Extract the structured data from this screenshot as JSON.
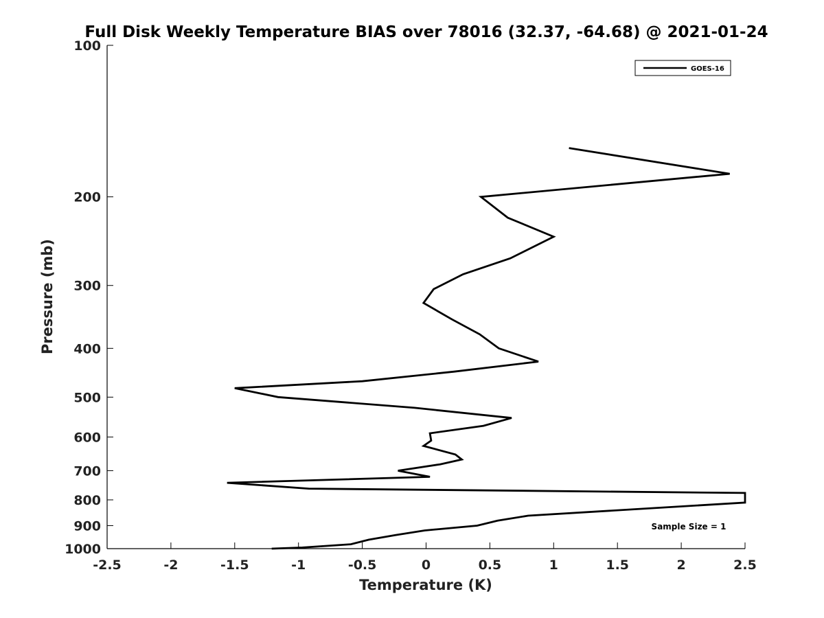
{
  "chart_data": {
    "type": "line",
    "title": "Full Disk Weekly Temperature BIAS over 78016 (32.37, -64.68) @ 2021-01-24",
    "xlabel": "Temperature (K)",
    "ylabel": "Pressure (mb)",
    "xlim": [
      -2.5,
      2.5
    ],
    "ylim": [
      100,
      1000
    ],
    "y_scale": "log",
    "y_reversed": true,
    "grid": false,
    "legend_position": "top-right",
    "x_tick_labels": [
      "-2.5",
      "-2",
      "-1.5",
      "-1",
      "-0.5",
      "0",
      "0.5",
      "1",
      "1.5",
      "2",
      "2.5"
    ],
    "y_tick_labels": [
      "100",
      "200",
      "300",
      "400",
      "500",
      "600",
      "700",
      "800",
      "900",
      "1000"
    ],
    "series": [
      {
        "name": "GOES-16",
        "color": "#000000",
        "points": [
          {
            "x": 1.12,
            "y": 160
          },
          {
            "x": 2.38,
            "y": 180
          },
          {
            "x": 0.43,
            "y": 200
          },
          {
            "x": 0.64,
            "y": 220
          },
          {
            "x": 1.0,
            "y": 240
          },
          {
            "x": 0.66,
            "y": 265
          },
          {
            "x": 0.29,
            "y": 285
          },
          {
            "x": 0.06,
            "y": 305
          },
          {
            "x": -0.02,
            "y": 325
          },
          {
            "x": 0.2,
            "y": 350
          },
          {
            "x": 0.42,
            "y": 375
          },
          {
            "x": 0.57,
            "y": 400
          },
          {
            "x": 0.88,
            "y": 425
          },
          {
            "x": 0.22,
            "y": 445
          },
          {
            "x": -0.5,
            "y": 465
          },
          {
            "x": -1.5,
            "y": 480
          },
          {
            "x": -1.16,
            "y": 500
          },
          {
            "x": -0.09,
            "y": 525
          },
          {
            "x": 0.67,
            "y": 550
          },
          {
            "x": 0.45,
            "y": 570
          },
          {
            "x": 0.03,
            "y": 590
          },
          {
            "x": 0.04,
            "y": 610
          },
          {
            "x": -0.02,
            "y": 625
          },
          {
            "x": 0.23,
            "y": 650
          },
          {
            "x": 0.28,
            "y": 665
          },
          {
            "x": 0.11,
            "y": 680
          },
          {
            "x": -0.22,
            "y": 700
          },
          {
            "x": 0.03,
            "y": 720
          },
          {
            "x": -1.56,
            "y": 740
          },
          {
            "x": -0.92,
            "y": 760
          },
          {
            "x": 2.5,
            "y": 775
          },
          {
            "x": 2.5,
            "y": 810
          },
          {
            "x": 0.8,
            "y": 860
          },
          {
            "x": 0.56,
            "y": 880
          },
          {
            "x": 0.4,
            "y": 900
          },
          {
            "x": -0.01,
            "y": 920
          },
          {
            "x": -0.24,
            "y": 940
          },
          {
            "x": -0.45,
            "y": 960
          },
          {
            "x": -0.59,
            "y": 980
          },
          {
            "x": -0.97,
            "y": 995
          },
          {
            "x": -1.21,
            "y": 1000
          }
        ]
      }
    ],
    "annotation": "Sample Size = 1"
  }
}
